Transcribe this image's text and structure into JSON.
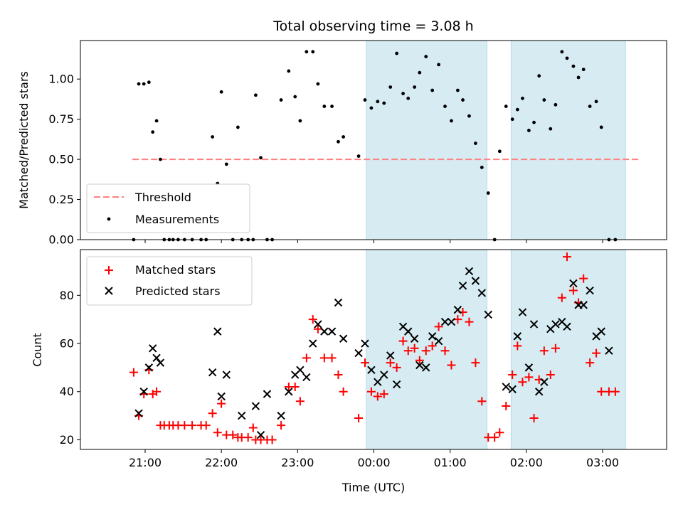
{
  "chart_data": [
    {
      "type": "scatter",
      "title": "Total observing time = 3.08 h",
      "ylabel": "Matched/Predicted stars",
      "xlabel": "",
      "ylim": [
        0,
        1.24
      ],
      "yticks": [
        "0.00",
        "0.25",
        "0.50",
        "0.75",
        "1.00"
      ],
      "legend": {
        "placement": "lower-left",
        "entries": [
          "Threshold",
          "Measurements"
        ]
      },
      "threshold": {
        "name": "Threshold",
        "value": 0.5,
        "x_start": "20:50",
        "x_end": "03:30",
        "color": "#ff7f7f"
      },
      "highlight_spans": [
        {
          "start": "23:54",
          "end": "01:29"
        },
        {
          "start": "01:48",
          "end": "03:18"
        }
      ],
      "series": [
        {
          "name": "Measurements",
          "color": "#000000",
          "points": [
            [
              "20:51",
              0.0
            ],
            [
              "20:55",
              0.97
            ],
            [
              "20:59",
              0.97
            ],
            [
              "21:03",
              0.98
            ],
            [
              "21:06",
              0.67
            ],
            [
              "21:09",
              0.74
            ],
            [
              "21:12",
              0.5
            ],
            [
              "21:15",
              0.0
            ],
            [
              "21:19",
              0.0
            ],
            [
              "21:22",
              0.0
            ],
            [
              "21:26",
              0.0
            ],
            [
              "21:31",
              0.0
            ],
            [
              "21:37",
              0.0
            ],
            [
              "21:44",
              0.0
            ],
            [
              "21:48",
              0.0
            ],
            [
              "21:53",
              0.64
            ],
            [
              "21:57",
              0.35
            ],
            [
              "22:00",
              0.92
            ],
            [
              "22:04",
              0.47
            ],
            [
              "22:09",
              0.0
            ],
            [
              "22:13",
              0.7
            ],
            [
              "22:16",
              0.0
            ],
            [
              "22:21",
              0.0
            ],
            [
              "22:25",
              0.0
            ],
            [
              "22:27",
              0.9
            ],
            [
              "22:31",
              0.51
            ],
            [
              "22:36",
              0.0
            ],
            [
              "22:40",
              0.0
            ],
            [
              "22:47",
              0.87
            ],
            [
              "22:53",
              1.05
            ],
            [
              "22:58",
              0.89
            ],
            [
              "23:02",
              0.74
            ],
            [
              "23:07",
              1.17
            ],
            [
              "23:12",
              1.17
            ],
            [
              "23:16",
              0.97
            ],
            [
              "23:21",
              0.83
            ],
            [
              "23:27",
              0.83
            ],
            [
              "23:32",
              0.61
            ],
            [
              "23:36",
              0.64
            ],
            [
              "23:48",
              0.52
            ],
            [
              "23:53",
              0.87
            ],
            [
              "23:58",
              0.82
            ],
            [
              "00:03",
              0.86
            ],
            [
              "00:08",
              0.85
            ],
            [
              "00:13",
              0.95
            ],
            [
              "00:18",
              1.16
            ],
            [
              "00:23",
              0.91
            ],
            [
              "00:27",
              0.88
            ],
            [
              "00:32",
              0.95
            ],
            [
              "00:36",
              1.04
            ],
            [
              "00:41",
              1.14
            ],
            [
              "00:46",
              0.93
            ],
            [
              "00:51",
              1.09
            ],
            [
              "00:56",
              0.83
            ],
            [
              "01:01",
              0.74
            ],
            [
              "01:06",
              0.93
            ],
            [
              "01:10",
              0.87
            ],
            [
              "01:15",
              0.77
            ],
            [
              "01:20",
              0.6
            ],
            [
              "01:25",
              0.45
            ],
            [
              "01:30",
              0.29
            ],
            [
              "01:35",
              0.0
            ],
            [
              "01:39",
              0.55
            ],
            [
              "01:44",
              0.83
            ],
            [
              "01:49",
              0.75
            ],
            [
              "01:53",
              0.81
            ],
            [
              "01:57",
              0.88
            ],
            [
              "02:02",
              0.68
            ],
            [
              "02:06",
              0.73
            ],
            [
              "02:10",
              1.02
            ],
            [
              "02:14",
              0.87
            ],
            [
              "02:19",
              0.69
            ],
            [
              "02:23",
              0.84
            ],
            [
              "02:28",
              1.17
            ],
            [
              "02:32",
              1.13
            ],
            [
              "02:37",
              1.08
            ],
            [
              "02:41",
              1.01
            ],
            [
              "02:45",
              1.06
            ],
            [
              "02:50",
              0.83
            ],
            [
              "02:55",
              0.86
            ],
            [
              "02:59",
              0.7
            ],
            [
              "03:05",
              0.0
            ],
            [
              "03:10",
              0.0
            ]
          ]
        }
      ]
    },
    {
      "type": "scatter",
      "title": "",
      "xlabel": "Time (UTC)",
      "ylabel": "Count",
      "ylim": [
        16,
        99
      ],
      "yticks": [
        "20",
        "40",
        "60",
        "80"
      ],
      "xticks": [
        "21:00",
        "22:00",
        "23:00",
        "00:00",
        "01:00",
        "02:00",
        "03:00"
      ],
      "legend": {
        "placement": "upper-left",
        "entries": [
          "Matched stars",
          "Predicted stars"
        ]
      },
      "highlight_spans": [
        {
          "start": "23:54",
          "end": "01:29"
        },
        {
          "start": "01:48",
          "end": "03:18"
        }
      ],
      "series": [
        {
          "name": "Matched stars",
          "color": "#ff0000",
          "marker": "+",
          "points": [
            [
              "20:51",
              48
            ],
            [
              "20:55",
              30
            ],
            [
              "20:59",
              39
            ],
            [
              "21:03",
              49
            ],
            [
              "21:06",
              39
            ],
            [
              "21:09",
              40
            ],
            [
              "21:12",
              26
            ],
            [
              "21:15",
              26
            ],
            [
              "21:19",
              26
            ],
            [
              "21:22",
              26
            ],
            [
              "21:26",
              26
            ],
            [
              "21:31",
              26
            ],
            [
              "21:37",
              26
            ],
            [
              "21:44",
              26
            ],
            [
              "21:48",
              26
            ],
            [
              "21:53",
              31
            ],
            [
              "21:57",
              23
            ],
            [
              "22:00",
              35
            ],
            [
              "22:04",
              22
            ],
            [
              "22:09",
              22
            ],
            [
              "22:13",
              21
            ],
            [
              "22:16",
              21
            ],
            [
              "22:21",
              21
            ],
            [
              "22:25",
              25
            ],
            [
              "22:27",
              20
            ],
            [
              "22:31",
              20
            ],
            [
              "22:36",
              20
            ],
            [
              "22:40",
              20
            ],
            [
              "22:47",
              26
            ],
            [
              "22:53",
              42
            ],
            [
              "22:58",
              42
            ],
            [
              "23:02",
              36
            ],
            [
              "23:07",
              54
            ],
            [
              "23:12",
              70
            ],
            [
              "23:16",
              66
            ],
            [
              "23:21",
              54
            ],
            [
              "23:27",
              54
            ],
            [
              "23:32",
              47
            ],
            [
              "23:36",
              40
            ],
            [
              "23:48",
              29
            ],
            [
              "23:53",
              52
            ],
            [
              "23:58",
              40
            ],
            [
              "00:03",
              38
            ],
            [
              "00:08",
              39
            ],
            [
              "00:13",
              52
            ],
            [
              "00:18",
              50
            ],
            [
              "00:23",
              61
            ],
            [
              "00:27",
              57
            ],
            [
              "00:32",
              58
            ],
            [
              "00:36",
              53
            ],
            [
              "00:41",
              57
            ],
            [
              "00:46",
              59
            ],
            [
              "00:51",
              67
            ],
            [
              "00:56",
              57
            ],
            [
              "01:01",
              51
            ],
            [
              "01:06",
              70
            ],
            [
              "01:10",
              73
            ],
            [
              "01:15",
              69
            ],
            [
              "01:20",
              52
            ],
            [
              "01:25",
              36
            ],
            [
              "01:30",
              21
            ],
            [
              "01:35",
              21
            ],
            [
              "01:39",
              23
            ],
            [
              "01:44",
              34
            ],
            [
              "01:49",
              47
            ],
            [
              "01:53",
              59
            ],
            [
              "01:57",
              44
            ],
            [
              "02:02",
              46
            ],
            [
              "02:06",
              29
            ],
            [
              "02:10",
              45
            ],
            [
              "02:14",
              57
            ],
            [
              "02:19",
              47
            ],
            [
              "02:23",
              58
            ],
            [
              "02:28",
              79
            ],
            [
              "02:32",
              96
            ],
            [
              "02:37",
              82
            ],
            [
              "02:41",
              77
            ],
            [
              "02:45",
              87
            ],
            [
              "02:50",
              52
            ],
            [
              "02:55",
              56
            ],
            [
              "02:59",
              40
            ],
            [
              "03:05",
              40
            ],
            [
              "03:10",
              40
            ]
          ]
        },
        {
          "name": "Predicted stars",
          "color": "#000000",
          "marker": "x",
          "points": [
            [
              "20:55",
              31
            ],
            [
              "20:59",
              40
            ],
            [
              "21:03",
              50
            ],
            [
              "21:06",
              58
            ],
            [
              "21:09",
              54
            ],
            [
              "21:12",
              52
            ],
            [
              "21:53",
              48
            ],
            [
              "21:57",
              65
            ],
            [
              "22:00",
              38
            ],
            [
              "22:04",
              47
            ],
            [
              "22:16",
              30
            ],
            [
              "22:27",
              34
            ],
            [
              "22:31",
              22
            ],
            [
              "22:36",
              39
            ],
            [
              "22:47",
              30
            ],
            [
              "22:53",
              40
            ],
            [
              "22:58",
              47
            ],
            [
              "23:02",
              49
            ],
            [
              "23:07",
              46
            ],
            [
              "23:12",
              60
            ],
            [
              "23:16",
              68
            ],
            [
              "23:21",
              65
            ],
            [
              "23:27",
              65
            ],
            [
              "23:32",
              77
            ],
            [
              "23:36",
              62
            ],
            [
              "23:48",
              56
            ],
            [
              "23:53",
              60
            ],
            [
              "23:58",
              49
            ],
            [
              "00:03",
              44
            ],
            [
              "00:08",
              47
            ],
            [
              "00:13",
              55
            ],
            [
              "00:18",
              43
            ],
            [
              "00:23",
              67
            ],
            [
              "00:27",
              65
            ],
            [
              "00:32",
              62
            ],
            [
              "00:36",
              51
            ],
            [
              "00:41",
              50
            ],
            [
              "00:46",
              63
            ],
            [
              "00:51",
              61
            ],
            [
              "00:56",
              69
            ],
            [
              "01:01",
              69
            ],
            [
              "01:06",
              74
            ],
            [
              "01:10",
              84
            ],
            [
              "01:15",
              90
            ],
            [
              "01:20",
              86
            ],
            [
              "01:25",
              81
            ],
            [
              "01:30",
              72
            ],
            [
              "01:44",
              42
            ],
            [
              "01:49",
              41
            ],
            [
              "01:53",
              63
            ],
            [
              "01:57",
              73
            ],
            [
              "02:02",
              50
            ],
            [
              "02:06",
              68
            ],
            [
              "02:10",
              40
            ],
            [
              "02:14",
              44
            ],
            [
              "02:19",
              66
            ],
            [
              "02:23",
              68
            ],
            [
              "02:28",
              69
            ],
            [
              "02:32",
              67
            ],
            [
              "02:37",
              85
            ],
            [
              "02:41",
              76
            ],
            [
              "02:45",
              76
            ],
            [
              "02:50",
              82
            ],
            [
              "02:55",
              63
            ],
            [
              "02:59",
              65
            ],
            [
              "03:05",
              57
            ]
          ]
        }
      ]
    }
  ]
}
